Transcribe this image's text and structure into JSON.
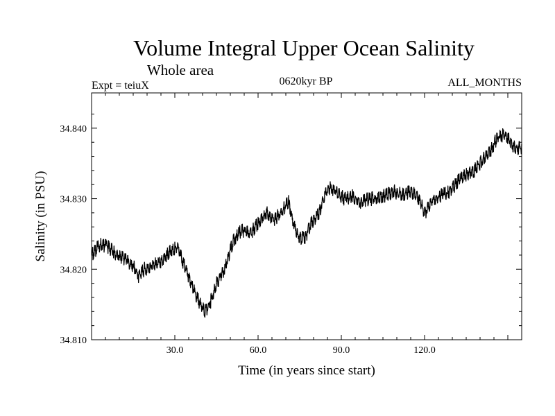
{
  "chart_data": {
    "type": "line",
    "title": "Volume Integral Upper Ocean Salinity",
    "subtitle": "Whole area",
    "annotations": {
      "left": "Expt = teiuX",
      "center": "0620kyr BP",
      "right": "ALL_MONTHS"
    },
    "xlabel": "Time (in years since start)",
    "ylabel": "Salinity (in PSU)",
    "xlim": [
      0,
      155
    ],
    "ylim": [
      34.81,
      34.845
    ],
    "x_ticks": [
      30,
      60,
      90,
      120
    ],
    "x_tick_labels": [
      "30.0",
      "60.0",
      "90.0",
      "120.0"
    ],
    "y_ticks": [
      34.81,
      34.82,
      34.83,
      34.84
    ],
    "y_tick_labels": [
      "34.810",
      "34.820",
      "34.830",
      "34.840"
    ],
    "grid": false,
    "series": [
      {
        "name": "Salinity",
        "color": "#000000",
        "noise_amplitude": 0.0009,
        "x": [
          0,
          3,
          6,
          9,
          12,
          15,
          17,
          19,
          22,
          25,
          28,
          31,
          33,
          35,
          37,
          39,
          41,
          43,
          45,
          48,
          51,
          54,
          57,
          60,
          63,
          66,
          69,
          71,
          73,
          75,
          77,
          79,
          82,
          84,
          86,
          88,
          91,
          94,
          97,
          100,
          103,
          106,
          109,
          112,
          115,
          118,
          120,
          121,
          123,
          126,
          129,
          132,
          135,
          138,
          141,
          144,
          146,
          148,
          150,
          152,
          155
        ],
        "y": [
          34.822,
          34.8235,
          34.8232,
          34.822,
          34.8215,
          34.8205,
          34.819,
          34.82,
          34.8205,
          34.821,
          34.8225,
          34.8232,
          34.821,
          34.819,
          34.817,
          34.815,
          34.814,
          34.8155,
          34.818,
          34.82,
          34.824,
          34.8255,
          34.825,
          34.8265,
          34.828,
          34.827,
          34.8285,
          34.8295,
          34.826,
          34.8245,
          34.8245,
          34.8265,
          34.828,
          34.8305,
          34.8315,
          34.831,
          34.83,
          34.8303,
          34.8295,
          34.83,
          34.83,
          34.8305,
          34.831,
          34.8305,
          34.831,
          34.83,
          34.828,
          34.8285,
          34.83,
          34.8305,
          34.831,
          34.8325,
          34.8335,
          34.834,
          34.8355,
          34.837,
          34.8385,
          34.839,
          34.8385,
          34.8375,
          34.837
        ]
      }
    ]
  }
}
